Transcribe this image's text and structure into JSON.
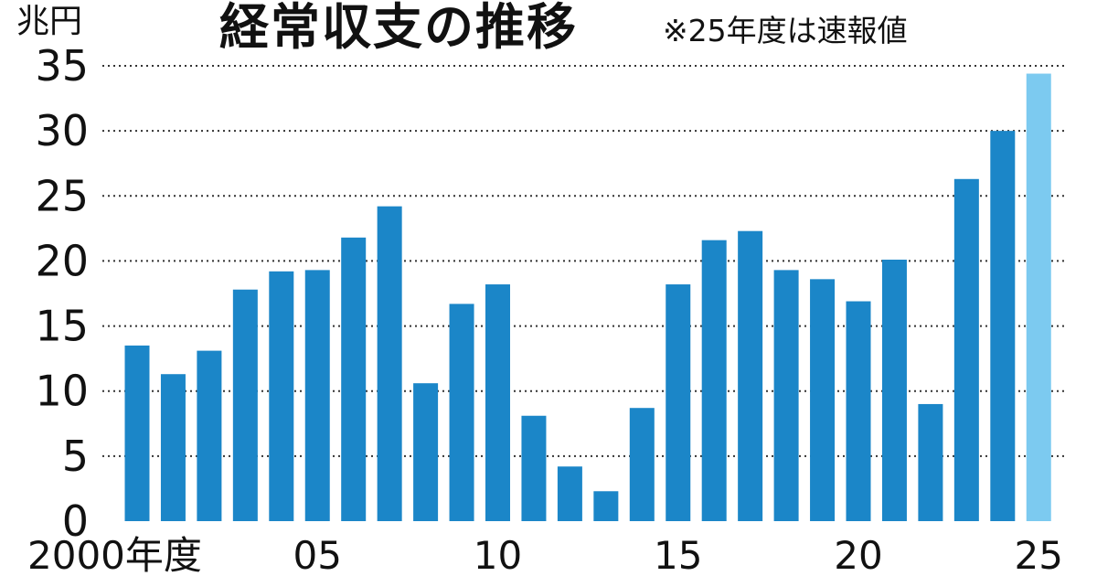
{
  "chart_data": {
    "type": "bar",
    "title": "経常収支の推移",
    "subtitle": "※25年度は速報値",
    "ylabel": "兆円",
    "xlabel": "",
    "ylim": [
      0,
      35
    ],
    "yticks": [
      "0",
      "5",
      "10",
      "15",
      "20",
      "25",
      "30",
      "35"
    ],
    "grid": true,
    "x_tick_labels": [
      {
        "index": 0,
        "label": "2000年度"
      },
      {
        "index": 5,
        "label": "05"
      },
      {
        "index": 10,
        "label": "10"
      },
      {
        "index": 15,
        "label": "15"
      },
      {
        "index": 20,
        "label": "20"
      },
      {
        "index": 25,
        "label": "25"
      }
    ],
    "categories": [
      "2000",
      "2001",
      "2002",
      "2003",
      "2004",
      "2005",
      "2006",
      "2007",
      "2008",
      "2009",
      "2010",
      "2011",
      "2012",
      "2013",
      "2014",
      "2015",
      "2016",
      "2017",
      "2018",
      "2019",
      "2020",
      "2021",
      "2022",
      "2023",
      "2024",
      "2025"
    ],
    "values": [
      13.5,
      11.3,
      13.1,
      17.8,
      19.2,
      19.3,
      21.8,
      24.2,
      10.6,
      16.7,
      18.2,
      8.1,
      4.2,
      2.3,
      8.7,
      18.2,
      21.6,
      22.3,
      19.3,
      18.6,
      16.9,
      20.1,
      9.0,
      26.3,
      30.0,
      34.4
    ],
    "colors": {
      "actual": "#1b86c8",
      "preliminary": "#7ccaf0",
      "grid": "#333333",
      "text": "#111111"
    },
    "highlight_index": 25
  }
}
